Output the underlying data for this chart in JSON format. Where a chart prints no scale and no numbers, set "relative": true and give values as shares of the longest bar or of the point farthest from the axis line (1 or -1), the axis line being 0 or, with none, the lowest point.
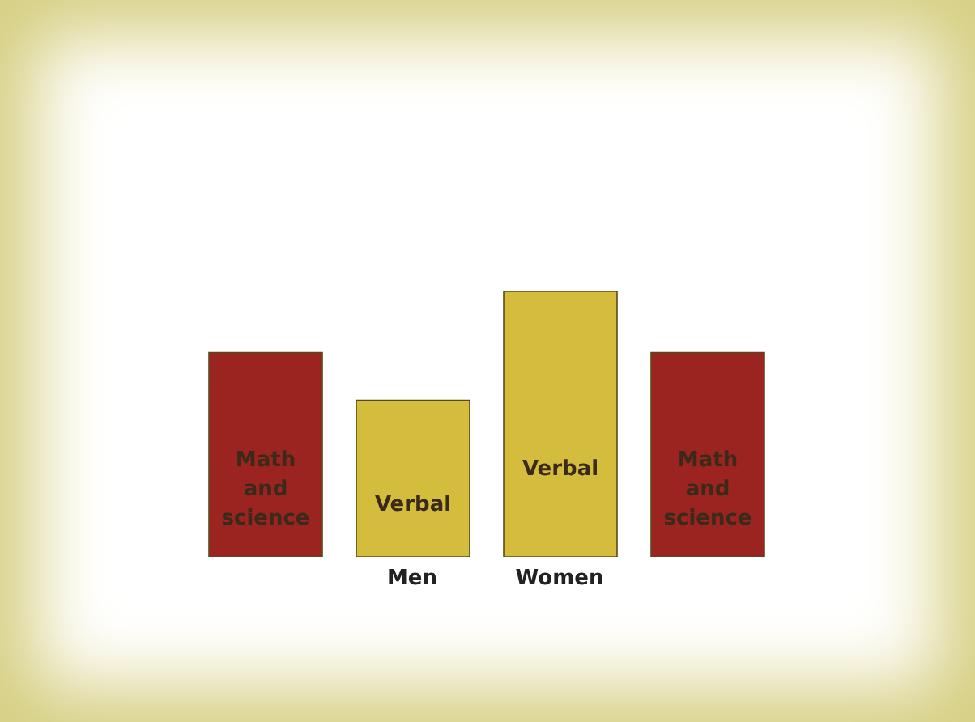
{
  "chart_data": {
    "type": "bar",
    "relative": true,
    "stacked": true,
    "categories": [
      null,
      "Men",
      "Women",
      null
    ],
    "series": [
      {
        "name": "Math and science",
        "color": "#9b2320",
        "values": [
          0.77,
          null,
          null,
          0.77
        ]
      },
      {
        "name": "Verbal",
        "color": "#d4bd3c",
        "values": [
          null,
          0.59,
          1,
          null
        ]
      }
    ],
    "grid": false,
    "legend": false
  }
}
